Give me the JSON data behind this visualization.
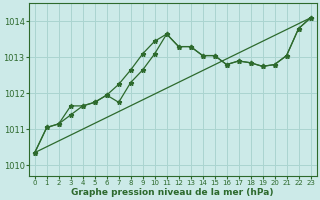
{
  "title": "Graphe pression niveau de la mer (hPa)",
  "background_color": "#cceae8",
  "grid_color": "#aad4d0",
  "line_color": "#2d6a2d",
  "xlim": [
    -0.5,
    23.5
  ],
  "ylim": [
    1009.7,
    1014.5
  ],
  "yticks": [
    1010,
    1011,
    1012,
    1013,
    1014
  ],
  "xticks": [
    0,
    1,
    2,
    3,
    4,
    5,
    6,
    7,
    8,
    9,
    10,
    11,
    12,
    13,
    14,
    15,
    16,
    17,
    18,
    19,
    20,
    21,
    22,
    23
  ],
  "line1_x": [
    0,
    1,
    2,
    3,
    4,
    5,
    6,
    7,
    8,
    9,
    10,
    11,
    12,
    13,
    14,
    15,
    16,
    17,
    18,
    19,
    20,
    21,
    22,
    23
  ],
  "line1_y": [
    1010.35,
    1011.05,
    1011.15,
    1011.4,
    1011.65,
    1011.75,
    1011.95,
    1012.25,
    1012.65,
    1013.1,
    1013.45,
    1013.65,
    1013.3,
    1013.3,
    1013.05,
    1013.05,
    1012.8,
    1012.9,
    1012.85,
    1012.75,
    1012.8,
    1013.05,
    1013.8,
    1014.1
  ],
  "line2_x": [
    0,
    1,
    2,
    3,
    4,
    5,
    6,
    7,
    8,
    9,
    10,
    11,
    12,
    13,
    14,
    15,
    16,
    17,
    18,
    19,
    20,
    21,
    22,
    23
  ],
  "line2_y": [
    1010.35,
    1011.05,
    1011.15,
    1011.65,
    1011.65,
    1011.75,
    1011.95,
    1011.75,
    1012.3,
    1012.65,
    1013.1,
    1013.65,
    1013.3,
    1013.3,
    1013.05,
    1013.05,
    1012.8,
    1012.9,
    1012.85,
    1012.75,
    1012.8,
    1013.05,
    1013.8,
    1014.1
  ],
  "line3_x": [
    0,
    23
  ],
  "line3_y": [
    1010.35,
    1014.1
  ]
}
